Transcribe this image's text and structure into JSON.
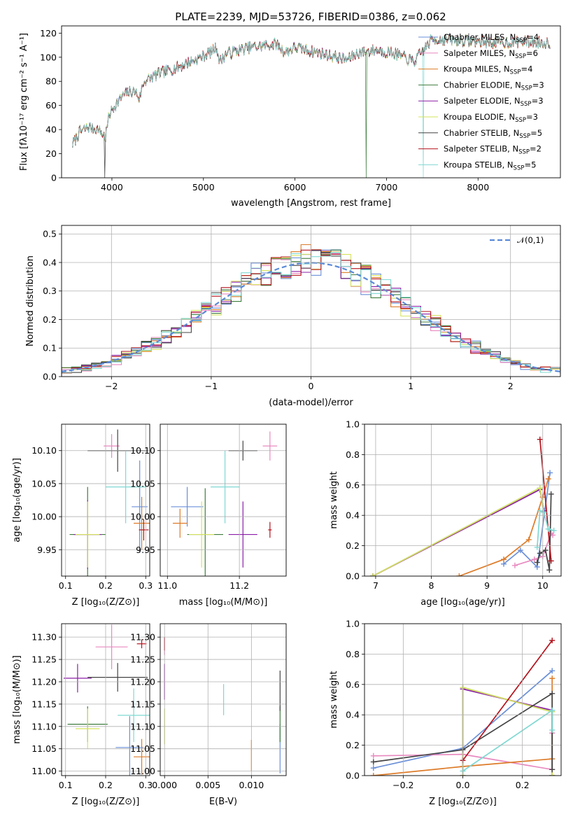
{
  "figure": {
    "title": "PLATE=2239, MJD=53726, FIBERID=0386, z=0.062"
  },
  "colors": {
    "chabrier_miles": "#6a8fd8",
    "salpeter_miles": "#e889bf",
    "kroupa_miles": "#dd7b28",
    "chabrier_elodie": "#3e7d3e",
    "salpeter_elodie": "#8b1fa6",
    "kroupa_elodie": "#d6e35e",
    "chabrier_stelib": "#444444",
    "salpeter_stelib": "#b4141e",
    "kroupa_stelib": "#7fd8d2",
    "normal_curve": "#5a8ad8"
  },
  "legend_main": [
    {
      "text": "Chabrier MILES, N",
      "sub": "SSP",
      "n": "=4",
      "color": "#6a8fd8"
    },
    {
      "text": "Salpeter MILES, N",
      "sub": "SSP",
      "n": "=6",
      "color": "#e889bf"
    },
    {
      "text": "Kroupa MILES, N",
      "sub": "SSP",
      "n": "=4",
      "color": "#dd7b28"
    },
    {
      "text": "Chabrier ELODIE, N",
      "sub": "SSP",
      "n": "=3",
      "color": "#3e7d3e"
    },
    {
      "text": "Salpeter ELODIE, N",
      "sub": "SSP",
      "n": "=3",
      "color": "#8b1fa6"
    },
    {
      "text": "Kroupa ELODIE, N",
      "sub": "SSP",
      "n": "=3",
      "color": "#d6e35e"
    },
    {
      "text": "Chabrier STELIB, N",
      "sub": "SSP",
      "n": "=5",
      "color": "#444444"
    },
    {
      "text": "Salpeter STELIB, N",
      "sub": "SSP",
      "n": "=2",
      "color": "#b4141e"
    },
    {
      "text": "Kroupa STELIB, N",
      "sub": "SSP",
      "n": "=5",
      "color": "#7fd8d2"
    }
  ],
  "legend_normal": "𝒩(0,1)",
  "chart_data": [
    {
      "id": "spectrum",
      "type": "line",
      "xlabel": "wavelength [Angstrom, rest frame]",
      "ylabel": "Flux [fλ10⁻¹⁷ erg cm⁻² s⁻¹ A⁻¹]",
      "xlim": [
        3450,
        8900
      ],
      "ylim": [
        0,
        126
      ],
      "xticks": [
        4000,
        5000,
        6000,
        7000,
        8000
      ],
      "yticks": [
        0,
        20,
        40,
        60,
        80,
        100,
        120
      ],
      "x_range": [
        3570,
        8790
      ],
      "profile": [
        [
          3570,
          28
        ],
        [
          3650,
          38
        ],
        [
          3750,
          42
        ],
        [
          3850,
          40
        ],
        [
          3930,
          34
        ],
        [
          3970,
          52
        ],
        [
          4050,
          62
        ],
        [
          4150,
          70
        ],
        [
          4250,
          72
        ],
        [
          4300,
          66
        ],
        [
          4350,
          80
        ],
        [
          4500,
          86
        ],
        [
          4700,
          91
        ],
        [
          4850,
          96
        ],
        [
          5000,
          101
        ],
        [
          5150,
          108
        ],
        [
          5175,
          96
        ],
        [
          5250,
          103
        ],
        [
          5500,
          108
        ],
        [
          5800,
          111
        ],
        [
          5890,
          104
        ],
        [
          6000,
          108
        ],
        [
          6300,
          103
        ],
        [
          6563,
          98
        ],
        [
          6700,
          104
        ],
        [
          6900,
          106
        ],
        [
          7100,
          103
        ],
        [
          7300,
          96
        ],
        [
          7500,
          115
        ],
        [
          7800,
          114
        ],
        [
          8200,
          112
        ],
        [
          8500,
          113
        ],
        [
          8790,
          112
        ]
      ],
      "drops": [
        {
          "x": 3920,
          "series": 6
        },
        {
          "x": 6780,
          "series": 3
        },
        {
          "x": 7400,
          "series": 8
        }
      ],
      "grid": false,
      "legend": "top-right"
    },
    {
      "id": "residuals",
      "type": "bar",
      "xlabel": "(data-model)/error",
      "ylabel": "Normed distribution",
      "xlim": [
        -2.5,
        2.5
      ],
      "ylim": [
        0,
        0.53
      ],
      "xticks": [
        -2,
        -1,
        0,
        1,
        2
      ],
      "yticks": [
        0.0,
        0.1,
        0.2,
        0.3,
        0.4,
        0.5
      ],
      "bin_width": 0.1,
      "normal": {
        "mu": 0,
        "sigma": 1
      },
      "grid": true,
      "legend": "top-right"
    },
    {
      "id": "age_vs_z",
      "type": "scatter",
      "xlabel": "Z [log₁₀(Z/Z⊙)]",
      "ylabel": "age  [log₁₀(age/yr)]",
      "xlim": [
        0.09,
        0.31
      ],
      "ylim": [
        9.91,
        10.14
      ],
      "xticks": [
        0.1,
        0.2,
        0.3
      ],
      "yticks": [
        9.95,
        10.0,
        10.05,
        10.1
      ],
      "points": [
        {
          "x": 0.285,
          "xe": 0.02,
          "y": 10.015,
          "ye": 0.07,
          "color": "#6a8fd8"
        },
        {
          "x": 0.215,
          "xe": 0.02,
          "y": 10.107,
          "ye": 0.018,
          "color": "#e889bf"
        },
        {
          "x": 0.29,
          "xe": 0.02,
          "y": 9.99,
          "ye": 0.04,
          "color": "#dd7b28"
        },
        {
          "x": 0.155,
          "xe": 0.045,
          "y": 9.973,
          "ye": 0.072,
          "color": "#3e7d3e"
        },
        {
          "x": 0.155,
          "xe": 0.035,
          "y": 9.973,
          "ye": 0.052,
          "color": "#8b1fa6"
        },
        {
          "x": 0.155,
          "xe": 0.03,
          "y": 9.973,
          "ye": 0.05,
          "color": "#d6e35e"
        },
        {
          "x": 0.23,
          "xe": 0.075,
          "y": 10.1,
          "ye": 0.032,
          "color": "#444444"
        },
        {
          "x": 0.295,
          "xe": 0.012,
          "y": 9.98,
          "ye": 0.016,
          "color": "#b4141e"
        },
        {
          "x": 0.25,
          "xe": 0.05,
          "y": 10.045,
          "ye": 0.055,
          "color": "#7fd8d2"
        }
      ]
    },
    {
      "id": "age_vs_mass",
      "type": "scatter",
      "xlabel": "mass [log₁₀(M/M⊙)]",
      "ylabel": "",
      "xlim": [
        10.98,
        11.33
      ],
      "ylim": [
        9.91,
        10.14
      ],
      "xticks": [
        11.0,
        11.2
      ],
      "yticks": [
        9.95,
        10.0,
        10.05,
        10.1
      ],
      "points": [
        {
          "x": 11.055,
          "xe": 0.045,
          "y": 10.015,
          "ye": 0.03,
          "color": "#6a8fd8"
        },
        {
          "x": 11.285,
          "xe": 0.02,
          "y": 10.107,
          "ye": 0.022,
          "color": "#e889bf"
        },
        {
          "x": 11.035,
          "xe": 0.02,
          "y": 9.99,
          "ye": 0.022,
          "color": "#dd7b28"
        },
        {
          "x": 11.105,
          "xe": 0.05,
          "y": 9.973,
          "ye": 0.07,
          "color": "#3e7d3e"
        },
        {
          "x": 11.21,
          "xe": 0.04,
          "y": 9.973,
          "ye": 0.05,
          "color": "#8b1fa6"
        },
        {
          "x": 11.095,
          "xe": 0.035,
          "y": 9.973,
          "ye": 0.05,
          "color": "#d6e35e"
        },
        {
          "x": 11.21,
          "xe": 0.04,
          "y": 10.1,
          "ye": 0.015,
          "color": "#444444"
        },
        {
          "x": 11.285,
          "xe": 0.005,
          "y": 9.98,
          "ye": 0.012,
          "color": "#b4141e"
        },
        {
          "x": 11.16,
          "xe": 0.04,
          "y": 10.045,
          "ye": 0.055,
          "color": "#7fd8d2"
        }
      ]
    },
    {
      "id": "mass_weight_vs_age",
      "type": "line",
      "xlabel": "age  [log₁₀(age/yr)]",
      "ylabel": "mass weight",
      "xlim": [
        6.8,
        10.33
      ],
      "ylim": [
        0,
        1.0
      ],
      "xticks": [
        7,
        8,
        9,
        10
      ],
      "yticks": [
        0.0,
        0.2,
        0.4,
        0.6,
        0.8,
        1.0
      ],
      "series": [
        {
          "color": "#6a8fd8",
          "x": [
            9.3,
            9.6,
            9.9,
            10.13
          ],
          "y": [
            0.08,
            0.17,
            0.06,
            0.68
          ]
        },
        {
          "color": "#e889bf",
          "x": [
            9.5,
            9.85,
            10.0,
            10.15,
            10.18
          ],
          "y": [
            0.07,
            0.11,
            0.13,
            0.28,
            0.27
          ]
        },
        {
          "color": "#dd7b28",
          "x": [
            8.5,
            9.3,
            9.75,
            10.0,
            10.1
          ],
          "y": [
            0.0,
            0.11,
            0.24,
            0.52,
            0.64
          ]
        },
        {
          "color": "#3e7d3e",
          "x": [
            6.95,
            9.95,
            10.02
          ],
          "y": [
            0.0,
            0.58,
            0.42
          ]
        },
        {
          "color": "#8b1fa6",
          "x": [
            6.95,
            9.95,
            10.02
          ],
          "y": [
            0.0,
            0.57,
            0.43
          ]
        },
        {
          "color": "#d6e35e",
          "x": [
            6.95,
            9.95,
            10.02
          ],
          "y": [
            0.0,
            0.58,
            0.42
          ]
        },
        {
          "color": "#444444",
          "x": [
            9.9,
            9.95,
            10.05,
            10.12,
            10.15
          ],
          "y": [
            0.09,
            0.15,
            0.17,
            0.04,
            0.54
          ]
        },
        {
          "color": "#b4141e",
          "x": [
            9.95,
            10.15
          ],
          "y": [
            0.9,
            0.1
          ]
        },
        {
          "color": "#7fd8d2",
          "x": [
            9.9,
            9.95,
            10.02,
            10.1,
            10.2
          ],
          "y": [
            0.19,
            0.43,
            0.42,
            0.31,
            0.3
          ]
        }
      ]
    },
    {
      "id": "mass_vs_z",
      "type": "scatter",
      "xlabel": "Z [log₁₀(Z/Z⊙)]",
      "ylabel": "mass [log₁₀(M/M⊙)]",
      "xlim": [
        0.09,
        0.31
      ],
      "ylim": [
        10.99,
        11.33
      ],
      "xticks": [
        0.1,
        0.2,
        0.3
      ],
      "yticks": [
        11.0,
        11.05,
        11.1,
        11.15,
        11.2,
        11.25,
        11.3
      ],
      "points": [
        {
          "x": 0.26,
          "xe": 0.035,
          "y": 11.053,
          "ye": 0.07,
          "color": "#6a8fd8"
        },
        {
          "x": 0.215,
          "xe": 0.04,
          "y": 11.278,
          "ye": 0.05,
          "color": "#e889bf"
        },
        {
          "x": 0.29,
          "xe": 0.02,
          "y": 11.032,
          "ye": 0.04,
          "color": "#dd7b28"
        },
        {
          "x": 0.155,
          "xe": 0.05,
          "y": 11.105,
          "ye": 0.04,
          "color": "#3e7d3e"
        },
        {
          "x": 0.13,
          "xe": 0.035,
          "y": 11.208,
          "ye": 0.032,
          "color": "#8b1fa6"
        },
        {
          "x": 0.155,
          "xe": 0.03,
          "y": 11.095,
          "ye": 0.045,
          "color": "#d6e35e"
        },
        {
          "x": 0.23,
          "xe": 0.075,
          "y": 11.21,
          "ye": 0.032,
          "color": "#444444"
        },
        {
          "x": 0.29,
          "xe": 0.012,
          "y": 11.285,
          "ye": 0.01,
          "color": "#b4141e"
        },
        {
          "x": 0.27,
          "xe": 0.04,
          "y": 11.125,
          "ye": 0.06,
          "color": "#7fd8d2"
        }
      ]
    },
    {
      "id": "mass_vs_ebv",
      "type": "scatter",
      "xlabel": "E(B-V)",
      "ylabel": "",
      "xlim": [
        -0.0005,
        0.014
      ],
      "ylim": [
        10.99,
        11.33
      ],
      "xticks": [
        0.0,
        0.005,
        0.01
      ],
      "yticks": [
        11.0,
        11.05,
        11.1,
        11.15,
        11.2,
        11.25,
        11.3
      ],
      "points": [
        {
          "x": 0.0133,
          "xe": 0.0,
          "y": 11.05,
          "ye": 0.055,
          "color": "#6a8fd8"
        },
        {
          "x": 0.0,
          "xe": 0.0,
          "y": 11.28,
          "ye": 0.02,
          "color": "#e889bf"
        },
        {
          "x": 0.01,
          "xe": 0.0,
          "y": 11.035,
          "ye": 0.035,
          "color": "#dd7b28"
        },
        {
          "x": 0.0133,
          "xe": 0.0,
          "y": 11.105,
          "ye": 0.04,
          "color": "#3e7d3e"
        },
        {
          "x": 0.0,
          "xe": 0.0,
          "y": 11.2,
          "ye": 0.04,
          "color": "#8b1fa6"
        },
        {
          "x": 0.0,
          "xe": 0.0,
          "y": 11.1,
          "ye": 0.04,
          "color": "#d6e35e"
        },
        {
          "x": 0.0133,
          "xe": 0.0,
          "y": 11.18,
          "ye": 0.045,
          "color": "#444444"
        },
        {
          "x": 0.0,
          "xe": 0.0,
          "y": 11.285,
          "ye": 0.015,
          "color": "#b4141e"
        },
        {
          "x": 0.0068,
          "xe": 0.0,
          "y": 11.16,
          "ye": 0.035,
          "color": "#7fd8d2"
        }
      ]
    },
    {
      "id": "mass_weight_vs_z",
      "type": "line",
      "xlabel": "Z [log₁₀(Z/Z⊙)]",
      "ylabel": "mass weight",
      "xlim": [
        -0.33,
        0.33
      ],
      "ylim": [
        0,
        1.0
      ],
      "xticks": [
        -0.2,
        0.0,
        0.2
      ],
      "yticks": [
        0.0,
        0.2,
        0.4,
        0.6,
        0.8,
        1.0
      ],
      "series": [
        {
          "color": "#6a8fd8",
          "x": [
            -0.3,
            0.0,
            0.3
          ],
          "y": [
            0.05,
            0.18,
            0.69
          ]
        },
        {
          "color": "#e889bf",
          "x": [
            -0.3,
            0.0,
            0.3,
            0.3
          ],
          "y": [
            0.13,
            0.14,
            0.04,
            0.28
          ]
        },
        {
          "color": "#dd7b28",
          "x": [
            -0.3,
            0.0,
            0.3,
            0.3
          ],
          "y": [
            0.0,
            0.06,
            0.11,
            0.64
          ]
        },
        {
          "color": "#3e7d3e",
          "x": [
            0.0,
            0.0,
            0.3,
            0.3
          ],
          "y": [
            0.0,
            0.58,
            0.42,
            0.0
          ]
        },
        {
          "color": "#8b1fa6",
          "x": [
            0.0,
            0.0,
            0.3,
            0.3
          ],
          "y": [
            0.0,
            0.57,
            0.43,
            0.0
          ]
        },
        {
          "color": "#d6e35e",
          "x": [
            0.0,
            0.0,
            0.3,
            0.3
          ],
          "y": [
            0.0,
            0.58,
            0.42,
            0.0
          ]
        },
        {
          "color": "#444444",
          "x": [
            -0.3,
            0.0,
            0.3,
            0.3
          ],
          "y": [
            0.09,
            0.17,
            0.54,
            0.04
          ]
        },
        {
          "color": "#b4141e",
          "x": [
            0.0,
            0.3
          ],
          "y": [
            0.1,
            0.89
          ]
        },
        {
          "color": "#7fd8d2",
          "x": [
            0.0,
            0.3,
            0.3
          ],
          "y": [
            0.03,
            0.43,
            0.3
          ]
        }
      ]
    }
  ]
}
